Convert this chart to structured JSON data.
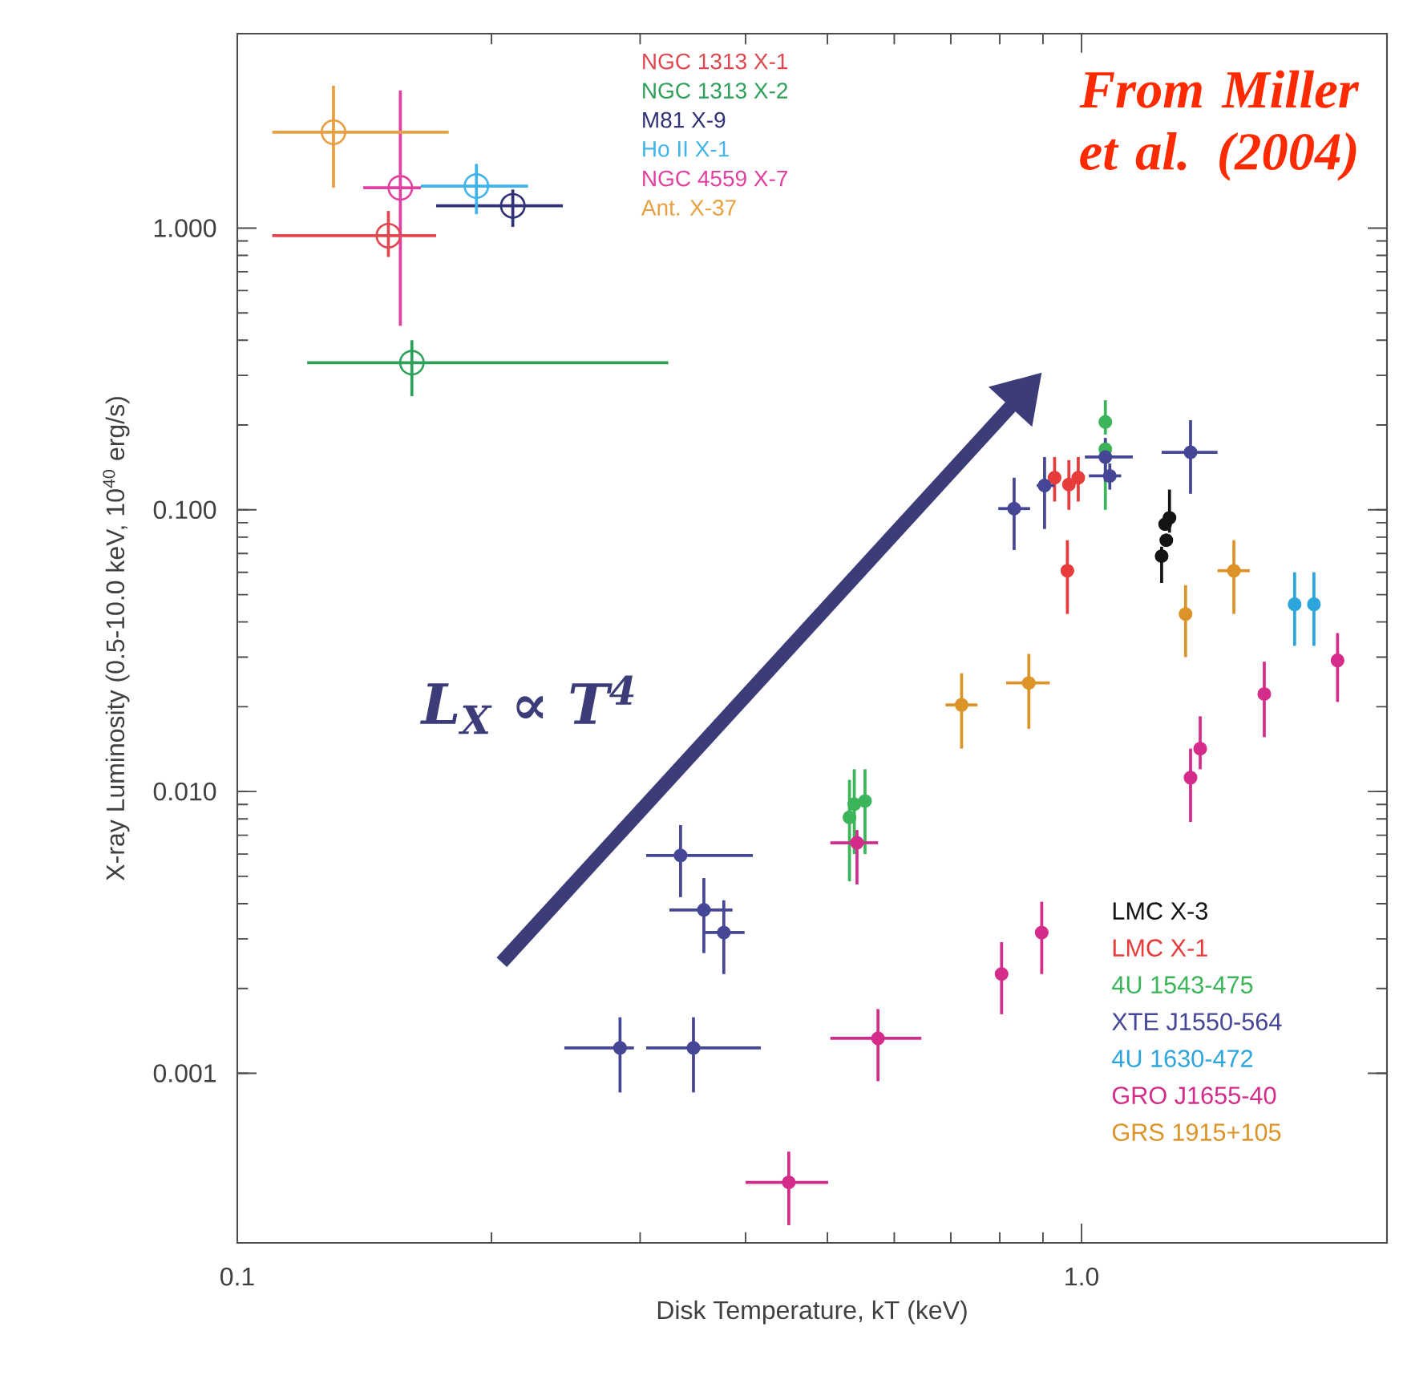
{
  "chart_data": {
    "type": "scatter",
    "xlabel": "Disk Temperature, kT (keV)",
    "ylabel": "X-ray Luminosity (0.5-10.0 keV, 10$^{40}$ erg/s)",
    "log": "xy",
    "legend": "top right",
    "xlim": [
      0.1,
      2.3
    ],
    "xticks": [
      0.1,
      {
        "value": 1,
        "label": "1.0"
      }
    ],
    "ylim": [
      0.00025,
      4.9
    ],
    "yticks": [
      0.001,
      {
        "value": 0.01,
        "label": "0.010"
      },
      {
        "value": 0.1,
        "label": "0.100"
      },
      {
        "value": 1,
        "label": "1.000"
      }
    ],
    "annotations": [
      "From Miller et al. (2004)",
      "L$_{X}$ ∝ T$^{4}$"
    ],
    "series": [
      {
        "name": "NGC 1313 X-1",
        "color": "#e04850",
        "marker": "circle",
        "x": [
          0.151
        ],
        "values": [
          0.94
        ],
        "errors": [
          [
            0.79,
            1.15
          ]
        ],
        "xerrors": [
          [
            0.11,
            0.172
          ]
        ]
      },
      {
        "name": "NGC 1313 X-2",
        "color": "#2ea05a",
        "marker": "circle",
        "x": [
          0.161
        ],
        "values": [
          0.333
        ],
        "errors": [
          [
            0.253,
            0.4
          ]
        ],
        "xerrors": [
          [
            0.121,
            0.324
          ]
        ]
      },
      {
        "name": "M81 X-9",
        "color": "#323278",
        "marker": "circle",
        "x": [
          0.212
        ],
        "values": [
          1.2
        ],
        "errors": [
          [
            1.01,
            1.37
          ]
        ],
        "xerrors": [
          [
            0.172,
            0.243
          ]
        ]
      },
      {
        "name": "Ho II X-1",
        "color": "#40b4e8",
        "marker": "circle",
        "x": [
          0.192
        ],
        "values": [
          1.41
        ],
        "errors": [
          [
            1.12,
            1.69
          ]
        ],
        "xerrors": [
          [
            0.165,
            0.221
          ]
        ]
      },
      {
        "name": "NGC 4559 X-7",
        "color": "#e040a0",
        "marker": "circle",
        "x": [
          0.156
        ],
        "values": [
          1.39
        ],
        "errors": [
          [
            0.45,
            3.08
          ]
        ],
        "xerrors": [
          [
            0.141,
            0.165
          ]
        ]
      },
      {
        "name": "Ant. X-37",
        "color": "#e8a040",
        "marker": "circle",
        "x": [
          0.13
        ],
        "values": [
          2.19
        ],
        "errors": [
          [
            1.39,
            3.2
          ]
        ],
        "xerrors": [
          [
            0.11,
            0.178
          ]
        ]
      },
      {
        "name": "LMC X-3",
        "color": "#141414",
        "x": [
          1.271,
          1.256,
          1.26,
          1.244
        ],
        "values": [
          0.0937,
          0.0889,
          0.078,
          0.0685
        ],
        "errors": [
          [
            0.083,
            0.118
          ],
          null,
          null,
          [
            0.055,
            0.074
          ]
        ]
      },
      {
        "name": "LMC X-1",
        "color": "#e83c3c",
        "x": [
          0.929,
          0.966,
          0.991,
          0.962
        ],
        "values": [
          0.13,
          0.123,
          0.13,
          0.0608
        ],
        "errors": [
          [
            0.107,
            0.154
          ],
          [
            0.1,
            0.15
          ],
          [
            0.107,
            0.154
          ],
          [
            0.0427,
            0.078
          ]
        ]
      },
      {
        "name": "4U 1543-475",
        "color": "#3cb45a",
        "x": [
          1.067,
          1.067,
          0.538,
          0.554,
          0.531
        ],
        "values": [
          0.205,
          0.164,
          0.00901,
          0.00925,
          0.0081
        ],
        "errors": [
          [
            0.185,
            0.245
          ],
          [
            0.1,
            0.175
          ],
          [
            0.006,
            0.012
          ],
          [
            0.006,
            0.012
          ],
          [
            0.0048,
            0.011
          ]
        ]
      },
      {
        "name": "XTE J1550-564",
        "color": "#464696",
        "x": [
          0.832,
          0.904,
          1.067,
          1.08,
          1.346,
          0.335,
          0.357,
          0.377,
          0.284,
          0.347
        ],
        "values": [
          0.101,
          0.122,
          0.154,
          0.132,
          0.16,
          0.00593,
          0.0038,
          0.00316,
          0.00123,
          0.00123
        ],
        "errors": [
          [
            0.072,
            0.13
          ],
          [
            0.0855,
            0.154
          ],
          [
            0.126,
            0.18
          ],
          [
            0.118,
            0.146
          ],
          [
            0.114,
            0.208
          ],
          [
            0.00422,
            0.0076
          ],
          [
            0.00267,
            0.00493
          ],
          [
            0.00225,
            0.00411
          ],
          [
            0.000855,
            0.00158
          ],
          [
            0.000855,
            0.00158
          ]
        ],
        "xerrors": [
          [
            0.797,
            0.869
          ],
          [
            0.885,
            0.929
          ],
          [
            1.009,
            1.15
          ],
          [
            1.02,
            1.114
          ],
          [
            1.244,
            1.449
          ],
          [
            0.305,
            0.408
          ],
          [
            0.325,
            0.386
          ],
          [
            0.358,
            0.399
          ],
          [
            0.244,
            0.295
          ],
          [
            0.305,
            0.417
          ]
        ]
      },
      {
        "name": "4U 1630-472",
        "color": "#2ca4dc",
        "x": [
          1.788,
          1.885
        ],
        "values": [
          0.0462,
          0.0462
        ],
        "errors": [
          [
            0.0329,
            0.06
          ],
          [
            0.0329,
            0.06
          ]
        ]
      },
      {
        "name": "GRO J1655-40",
        "color": "#d42c8a",
        "x": [
          0.542,
          2.01,
          1.646,
          1.382,
          1.346,
          0.897,
          0.804,
          0.574,
          0.45
        ],
        "values": [
          0.00658,
          0.0292,
          0.0222,
          0.0142,
          0.0112,
          0.00316,
          0.00225,
          0.00133,
          0.00041
        ],
        "errors": [
          [
            0.00468,
            0.0073
          ],
          [
            0.0208,
            0.0365
          ],
          [
            0.0156,
            0.0289
          ],
          [
            0.012,
            0.0185
          ],
          [
            0.0078,
            0.0142
          ],
          [
            0.00225,
            0.00406
          ],
          [
            0.00162,
            0.00292
          ],
          [
            0.000937,
            0.00169
          ],
          [
            0.000289,
            0.000527
          ]
        ],
        "xerrors": [
          [
            0.504,
            0.574
          ],
          null,
          null,
          null,
          null,
          null,
          null,
          [
            0.504,
            0.646
          ],
          [
            0.4,
            0.501
          ]
        ]
      },
      {
        "name": "GRS 1915+105",
        "color": "#dc9428",
        "x": [
          1.515,
          1.328,
          0.721,
          0.866
        ],
        "values": [
          0.0608,
          0.0427,
          0.0203,
          0.0243
        ],
        "errors": [
          [
            0.0427,
            0.078
          ],
          [
            0.03,
            0.054
          ],
          [
            0.0142,
            0.0263
          ],
          [
            0.0167,
            0.0308
          ]
        ],
        "xerrors": [
          [
            1.449,
            1.582
          ],
          null,
          [
            0.69,
            0.753
          ],
          [
            0.814,
            0.917
          ]
        ]
      }
    ]
  }
}
